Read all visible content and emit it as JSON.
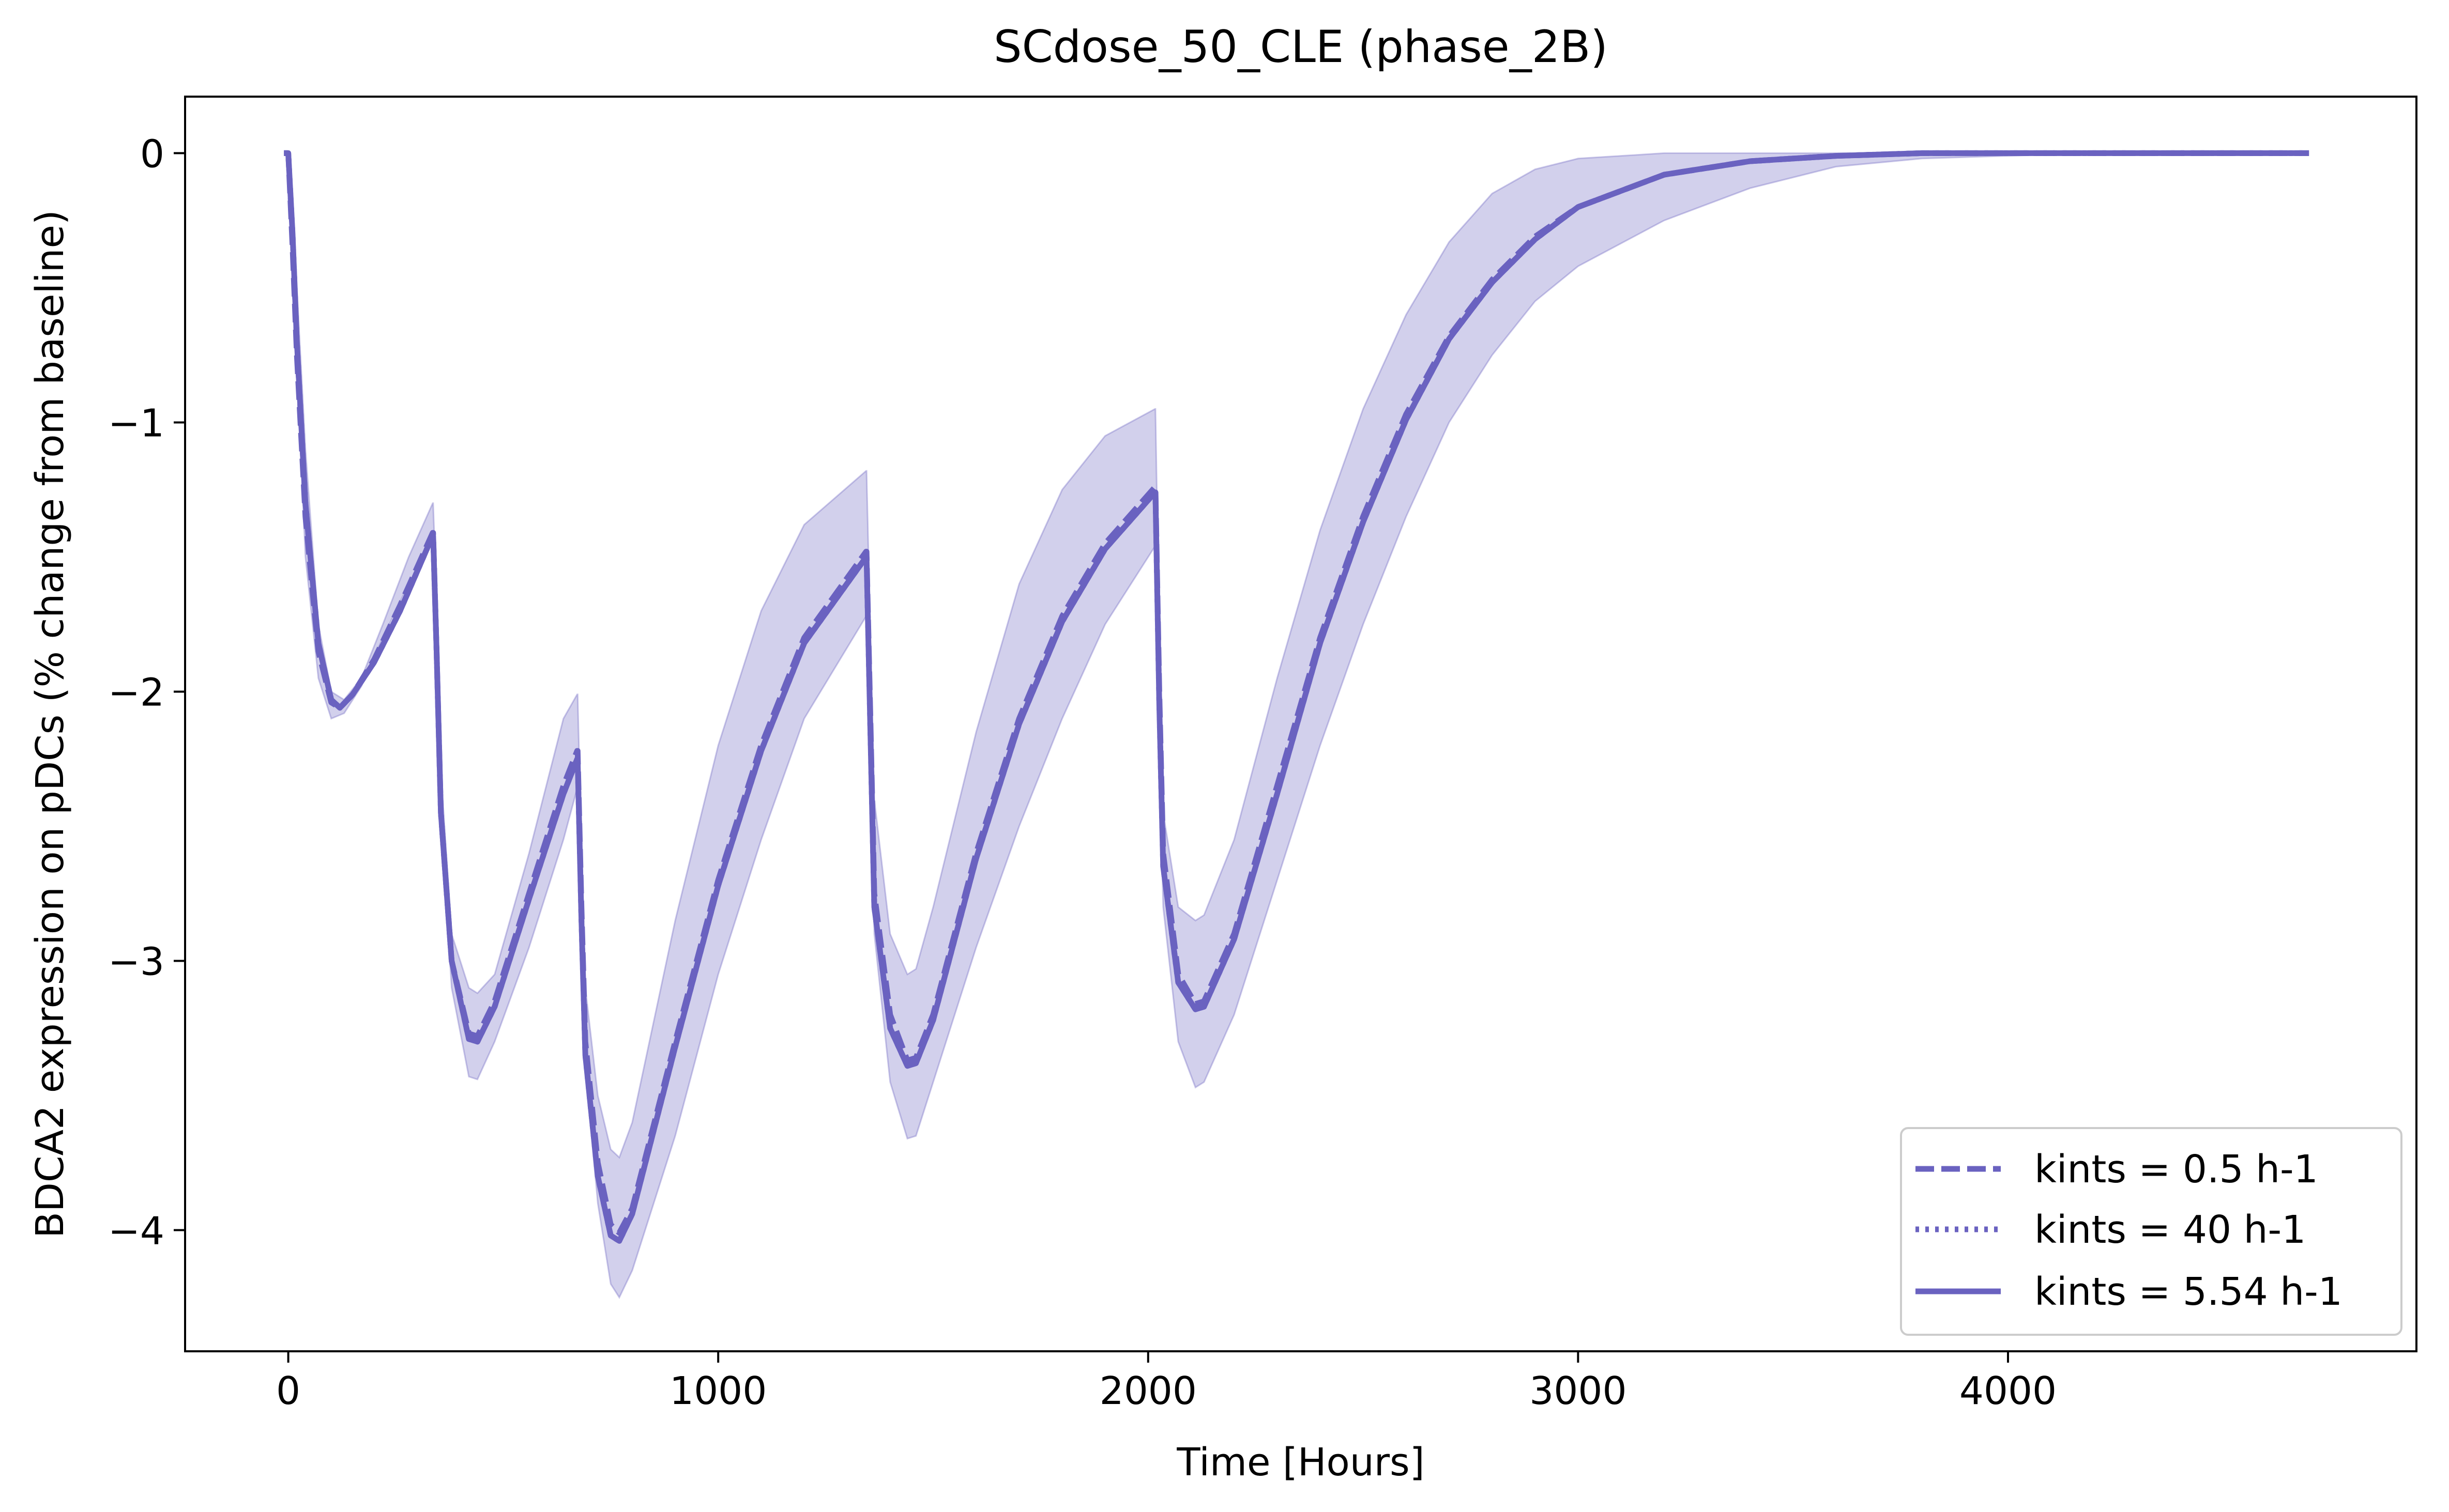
{
  "chart_data": {
    "type": "line",
    "title": "SCdose_50_CLE (phase_2B)",
    "xlabel": "Time [Hours]",
    "ylabel": "BDCA2 expression on pDCs (% change from baseline)",
    "xlim": [
      -240,
      4950
    ],
    "ylim": [
      -4.45,
      0.21
    ],
    "xticks": [
      0,
      1000,
      2000,
      3000,
      4000
    ],
    "xtick_labels": [
      "0",
      "1000",
      "2000",
      "3000",
      "4000"
    ],
    "yticks": [
      0,
      -1,
      -2,
      -3,
      -4
    ],
    "ytick_labels": [
      "0",
      "−1",
      "−2",
      "−3",
      "−4"
    ],
    "grid": false,
    "legend_position": "lower right",
    "color": "#6a62c0",
    "band": {
      "color": "#6a62c0",
      "opacity": 0.3,
      "x": [
        -10,
        0,
        5,
        10,
        20,
        40,
        70,
        100,
        130,
        170,
        220,
        280,
        336,
        337,
        346,
        355,
        380,
        420,
        440,
        480,
        560,
        640,
        672,
        673,
        682,
        691,
        720,
        750,
        770,
        800,
        900,
        1000,
        1100,
        1200,
        1344,
        1345,
        1354,
        1363,
        1400,
        1440,
        1460,
        1500,
        1600,
        1700,
        1800,
        1900,
        2016,
        2017,
        2026,
        2035,
        2070,
        2110,
        2130,
        2200,
        2300,
        2400,
        2500,
        2600,
        2700,
        2800,
        2900,
        3000,
        3200,
        3400,
        3600,
        3800,
        4000,
        4200,
        4400,
        4700
      ],
      "lower": [
        0,
        0,
        -0.05,
        -0.3,
        -0.8,
        -1.5,
        -1.95,
        -2.1,
        -2.08,
        -1.98,
        -1.8,
        -1.6,
        -1.44,
        -1.44,
        -1.9,
        -2.5,
        -3.1,
        -3.43,
        -3.44,
        -3.3,
        -2.95,
        -2.55,
        -2.36,
        -2.36,
        -2.9,
        -3.4,
        -3.9,
        -4.2,
        -4.25,
        -4.15,
        -3.65,
        -3.05,
        -2.55,
        -2.1,
        -1.72,
        -1.72,
        -2.3,
        -2.9,
        -3.45,
        -3.66,
        -3.65,
        -3.45,
        -2.95,
        -2.5,
        -2.1,
        -1.75,
        -1.46,
        -1.46,
        -2.2,
        -2.8,
        -3.3,
        -3.47,
        -3.45,
        -3.2,
        -2.7,
        -2.2,
        -1.75,
        -1.35,
        -1.0,
        -0.75,
        -0.55,
        -0.42,
        -0.25,
        -0.13,
        -0.05,
        -0.02,
        -0.01,
        0,
        0,
        0
      ],
      "upper": [
        0,
        0,
        -0.05,
        -0.15,
        -0.5,
        -1.1,
        -1.75,
        -2.0,
        -2.03,
        -1.95,
        -1.75,
        -1.5,
        -1.3,
        -1.3,
        -1.7,
        -2.3,
        -2.9,
        -3.1,
        -3.12,
        -3.05,
        -2.6,
        -2.1,
        -2.01,
        -2.01,
        -2.6,
        -3.1,
        -3.5,
        -3.7,
        -3.73,
        -3.6,
        -2.85,
        -2.2,
        -1.7,
        -1.38,
        -1.18,
        -1.18,
        -1.8,
        -2.4,
        -2.9,
        -3.05,
        -3.03,
        -2.8,
        -2.15,
        -1.6,
        -1.25,
        -1.05,
        -0.95,
        -0.95,
        -1.8,
        -2.45,
        -2.8,
        -2.85,
        -2.83,
        -2.55,
        -1.95,
        -1.4,
        -0.95,
        -0.6,
        -0.33,
        -0.15,
        -0.06,
        -0.02,
        0,
        0,
        0,
        0,
        0,
        0,
        0,
        0
      ]
    },
    "series": [
      {
        "name": "kints = 0.5 h-1",
        "style": "dashed",
        "x": [
          -10,
          0,
          10,
          20,
          40,
          70,
          100,
          120,
          150,
          200,
          260,
          336,
          337,
          345,
          355,
          380,
          420,
          440,
          480,
          560,
          640,
          672,
          673,
          682,
          691,
          720,
          750,
          770,
          800,
          900,
          1000,
          1100,
          1200,
          1344,
          1345,
          1354,
          1363,
          1400,
          1440,
          1460,
          1500,
          1600,
          1700,
          1800,
          1900,
          2016,
          2017,
          2026,
          2035,
          2070,
          2110,
          2130,
          2200,
          2300,
          2400,
          2500,
          2600,
          2700,
          2800,
          2900,
          3000,
          3200,
          3400,
          3600,
          3800,
          4000,
          4200,
          4400,
          4700
        ],
        "y": [
          0,
          0,
          -0.35,
          -0.75,
          -1.35,
          -1.85,
          -2.04,
          -2.06,
          -2.01,
          -1.88,
          -1.68,
          -1.41,
          -1.41,
          -1.85,
          -2.45,
          -3.0,
          -3.27,
          -3.28,
          -3.15,
          -2.75,
          -2.35,
          -2.22,
          -2.22,
          -2.8,
          -3.3,
          -3.75,
          -3.98,
          -4.01,
          -3.92,
          -3.3,
          -2.7,
          -2.2,
          -1.8,
          -1.48,
          -1.48,
          -2.1,
          -2.75,
          -3.2,
          -3.37,
          -3.36,
          -3.2,
          -2.6,
          -2.1,
          -1.72,
          -1.45,
          -1.24,
          -1.24,
          -2.0,
          -2.6,
          -3.05,
          -3.16,
          -3.15,
          -2.9,
          -2.35,
          -1.8,
          -1.35,
          -0.97,
          -0.68,
          -0.47,
          -0.31,
          -0.2,
          -0.08,
          -0.03,
          -0.01,
          0,
          0,
          0,
          0,
          0
        ]
      },
      {
        "name": "kints = 40 h-1",
        "style": "dotted",
        "x": [
          -10,
          0,
          10,
          20,
          40,
          70,
          100,
          120,
          150,
          200,
          260,
          336,
          337,
          345,
          355,
          380,
          420,
          440,
          480,
          560,
          640,
          672,
          673,
          682,
          691,
          720,
          750,
          770,
          800,
          900,
          1000,
          1100,
          1200,
          1344,
          1345,
          1354,
          1363,
          1400,
          1440,
          1460,
          1500,
          1600,
          1700,
          1800,
          1900,
          2016,
          2017,
          2026,
          2035,
          2070,
          2110,
          2130,
          2200,
          2300,
          2400,
          2500,
          2600,
          2700,
          2800,
          2900,
          3000,
          3200,
          3400,
          3600,
          3800,
          4000,
          4200,
          4400,
          4700
        ],
        "y": [
          0,
          0,
          -0.3,
          -0.7,
          -1.3,
          -1.82,
          -2.03,
          -2.06,
          -2.01,
          -1.89,
          -1.7,
          -1.42,
          -1.42,
          -1.85,
          -2.45,
          -3.0,
          -3.29,
          -3.3,
          -3.17,
          -2.77,
          -2.38,
          -2.25,
          -2.25,
          -2.85,
          -3.35,
          -3.8,
          -4.02,
          -4.04,
          -3.94,
          -3.32,
          -2.72,
          -2.22,
          -1.82,
          -1.5,
          -1.5,
          -2.15,
          -2.8,
          -3.25,
          -3.39,
          -3.38,
          -3.22,
          -2.62,
          -2.12,
          -1.74,
          -1.47,
          -1.26,
          -1.26,
          -2.05,
          -2.65,
          -3.08,
          -3.18,
          -3.17,
          -2.92,
          -2.38,
          -1.82,
          -1.37,
          -0.99,
          -0.69,
          -0.48,
          -0.32,
          -0.2,
          -0.08,
          -0.03,
          -0.01,
          0,
          0,
          0,
          0,
          0
        ]
      },
      {
        "name": "kints = 5.54 h-1",
        "style": "solid",
        "x": [
          -10,
          0,
          10,
          20,
          40,
          70,
          100,
          120,
          150,
          200,
          260,
          336,
          337,
          345,
          355,
          380,
          420,
          440,
          480,
          560,
          640,
          672,
          673,
          682,
          691,
          720,
          750,
          770,
          800,
          900,
          1000,
          1100,
          1200,
          1344,
          1345,
          1354,
          1363,
          1400,
          1440,
          1460,
          1500,
          1600,
          1700,
          1800,
          1900,
          2016,
          2017,
          2026,
          2035,
          2070,
          2110,
          2130,
          2200,
          2300,
          2400,
          2500,
          2600,
          2700,
          2800,
          2900,
          3000,
          3200,
          3400,
          3600,
          3800,
          4000,
          4200,
          4400,
          4700
        ],
        "y": [
          0,
          0,
          -0.3,
          -0.7,
          -1.3,
          -1.82,
          -2.03,
          -2.06,
          -2.01,
          -1.89,
          -1.7,
          -1.42,
          -1.42,
          -1.85,
          -2.45,
          -3.0,
          -3.29,
          -3.3,
          -3.17,
          -2.77,
          -2.38,
          -2.25,
          -2.25,
          -2.85,
          -3.35,
          -3.8,
          -4.02,
          -4.04,
          -3.94,
          -3.32,
          -2.72,
          -2.22,
          -1.82,
          -1.5,
          -1.5,
          -2.15,
          -2.8,
          -3.25,
          -3.39,
          -3.38,
          -3.22,
          -2.62,
          -2.12,
          -1.74,
          -1.47,
          -1.26,
          -1.26,
          -2.05,
          -2.65,
          -3.08,
          -3.18,
          -3.17,
          -2.92,
          -2.38,
          -1.82,
          -1.37,
          -0.99,
          -0.69,
          -0.48,
          -0.32,
          -0.2,
          -0.08,
          -0.03,
          -0.01,
          0,
          0,
          0,
          0,
          0
        ]
      }
    ]
  }
}
